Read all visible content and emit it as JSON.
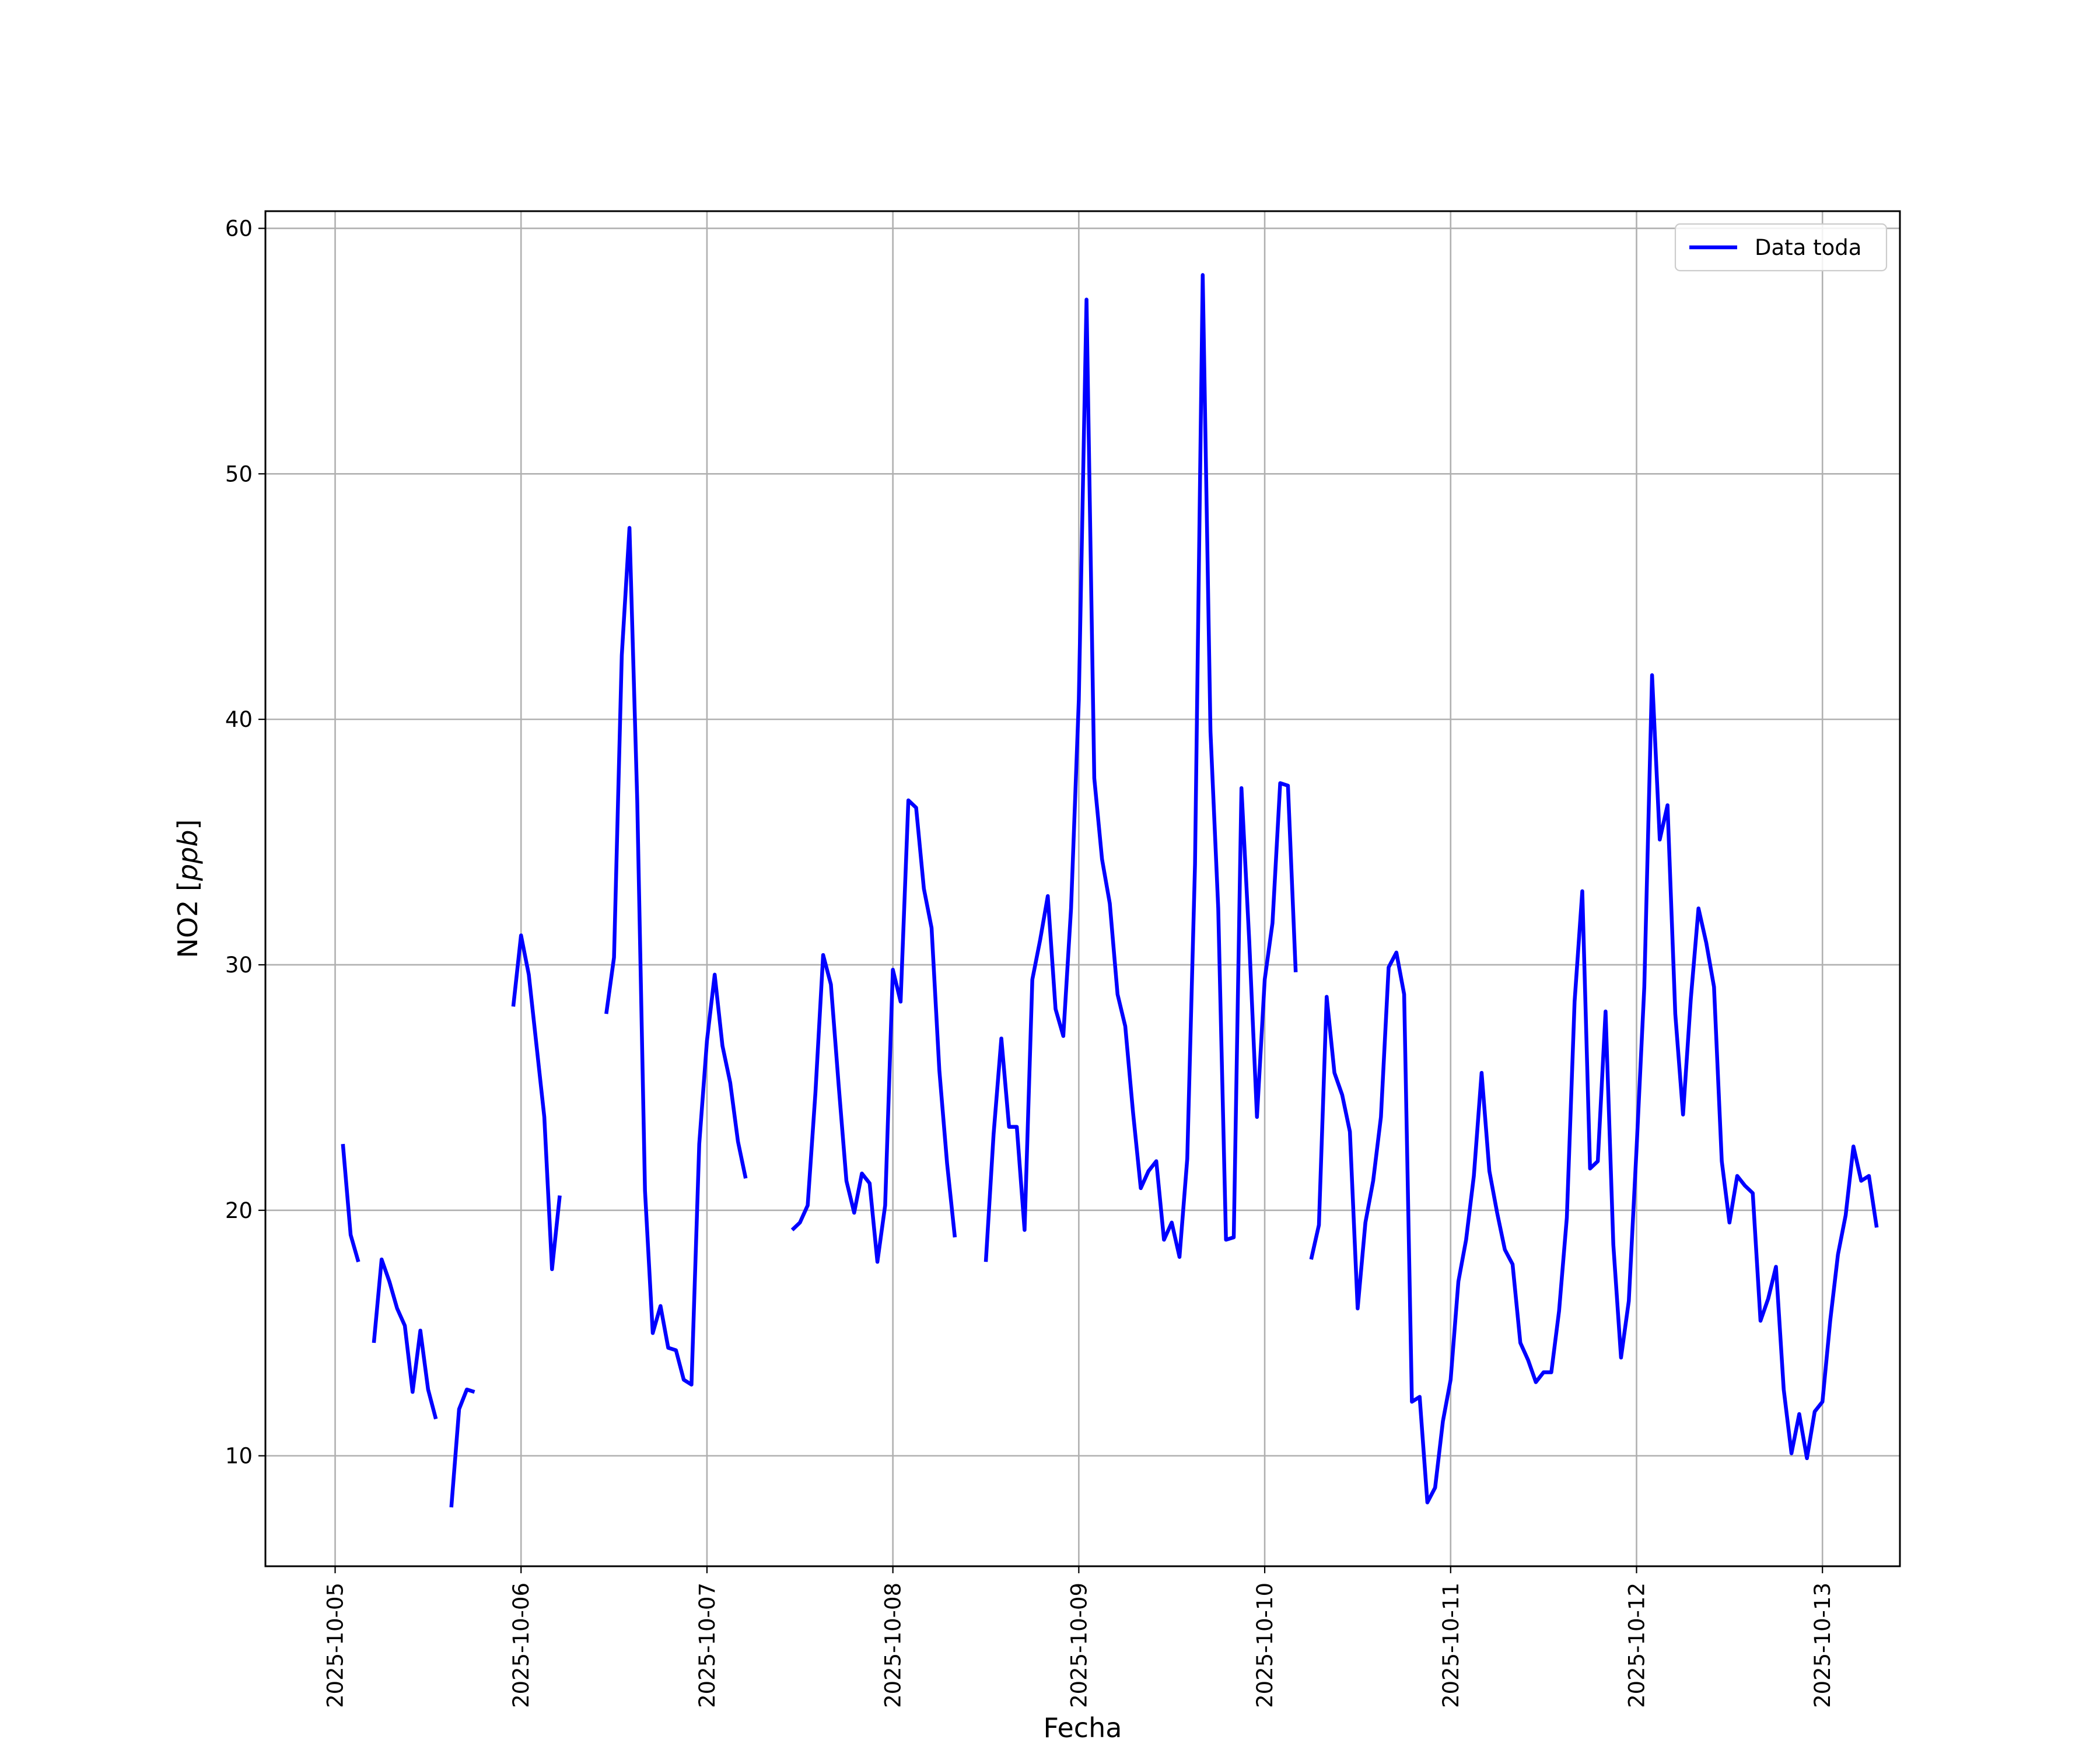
{
  "chart_data": {
    "type": "line",
    "title": "",
    "xlabel": "Fecha",
    "ylabel_main": "NO2 [",
    "ylabel_unit": "ppb",
    "ylabel_close": "]",
    "xlim": [
      "2025-10-04T15:00",
      "2025-10-13T10:00"
    ],
    "ylim": [
      5.5,
      60.7
    ],
    "grid": true,
    "legend": "top-right",
    "x_ticks": [
      "2025-10-05",
      "2025-10-06",
      "2025-10-07",
      "2025-10-08",
      "2025-10-09",
      "2025-10-10",
      "2025-10-11",
      "2025-10-12",
      "2025-10-13"
    ],
    "y_ticks": [
      10,
      20,
      30,
      40,
      50,
      60
    ],
    "series": [
      {
        "name": "Data toda",
        "color": "#0000ff",
        "start": "2025-10-05T00:00",
        "interval_hours": 1,
        "values": [
          null,
          22.7,
          19.0,
          17.9,
          null,
          14.6,
          18.0,
          17.1,
          16.0,
          15.3,
          12.6,
          15.1,
          12.7,
          11.5,
          null,
          7.9,
          11.9,
          12.7,
          12.6,
          null,
          null,
          null,
          null,
          28.3,
          31.2,
          29.6,
          26.7,
          23.8,
          17.6,
          20.6,
          null,
          null,
          null,
          null,
          null,
          28.0,
          30.3,
          42.6,
          47.8,
          36.7,
          20.8,
          15.0,
          16.1,
          14.4,
          14.3,
          13.1,
          12.9,
          22.7,
          26.9,
          29.6,
          26.7,
          25.2,
          22.8,
          21.3,
          null,
          null,
          null,
          null,
          null,
          19.2,
          19.5,
          20.2,
          24.8,
          30.4,
          29.2,
          25.1,
          21.2,
          19.9,
          21.5,
          21.1,
          17.9,
          20.2,
          29.8,
          28.5,
          36.7,
          36.4,
          33.1,
          31.5,
          25.7,
          21.9,
          18.9,
          null,
          null,
          null,
          17.9,
          23.1,
          27.0,
          23.4,
          23.4,
          19.2,
          29.4,
          31.0,
          32.8,
          28.2,
          27.1,
          32.3,
          40.8,
          57.1,
          37.6,
          34.3,
          32.5,
          28.8,
          27.5,
          24.0,
          20.9,
          21.6,
          22.0,
          18.8,
          19.5,
          18.1,
          22.1,
          34.1,
          58.1,
          39.5,
          32.3,
          18.8,
          18.9,
          37.2,
          31.0,
          23.8,
          29.4,
          31.7,
          37.4,
          37.3,
          29.7,
          null,
          18.0,
          19.4,
          28.7,
          25.6,
          24.7,
          23.2,
          16.0,
          19.5,
          21.2,
          23.8,
          29.9,
          30.5,
          28.8,
          12.2,
          12.4,
          8.1,
          8.7,
          11.4,
          13.1,
          17.1,
          18.8,
          21.4,
          25.6,
          21.6,
          19.9,
          18.4,
          17.8,
          14.6,
          13.9,
          13.0,
          13.4,
          13.4,
          15.9,
          19.7,
          28.5,
          33.0,
          21.7,
          22.0,
          28.1,
          18.6,
          14.0,
          16.3,
          22.5,
          29.1,
          41.8,
          35.1,
          36.5,
          28.0,
          23.9,
          28.6,
          32.3,
          30.9,
          29.1,
          22.0,
          19.5,
          21.4,
          21.0,
          20.7,
          15.5,
          16.4,
          17.7,
          12.7,
          10.1,
          11.7,
          9.9,
          11.8,
          12.2,
          15.5,
          18.2,
          19.8,
          22.6,
          21.2,
          21.4,
          19.3
        ]
      }
    ]
  }
}
